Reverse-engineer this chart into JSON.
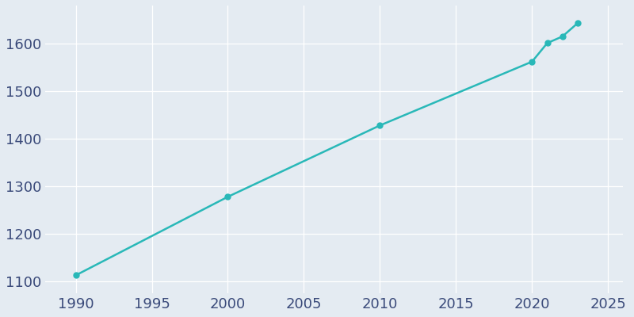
{
  "years": [
    1990,
    2000,
    2010,
    2020,
    2021,
    2022,
    2023
  ],
  "population": [
    1113,
    1278,
    1428,
    1562,
    1601,
    1615,
    1643
  ],
  "line_color": "#29b8b8",
  "marker_color": "#29b8b8",
  "bg_color": "#E4EBF2",
  "grid_color": "#ffffff",
  "text_color": "#2d3a5e",
  "xlim": [
    1988.0,
    2026.0
  ],
  "ylim": [
    1075,
    1680
  ],
  "xticks": [
    1990,
    1995,
    2000,
    2005,
    2010,
    2015,
    2020,
    2025
  ],
  "yticks": [
    1100,
    1200,
    1300,
    1400,
    1500,
    1600
  ],
  "tick_fontsize": 13,
  "tick_color": "#3a4a7a",
  "linewidth": 1.8,
  "markersize": 5
}
